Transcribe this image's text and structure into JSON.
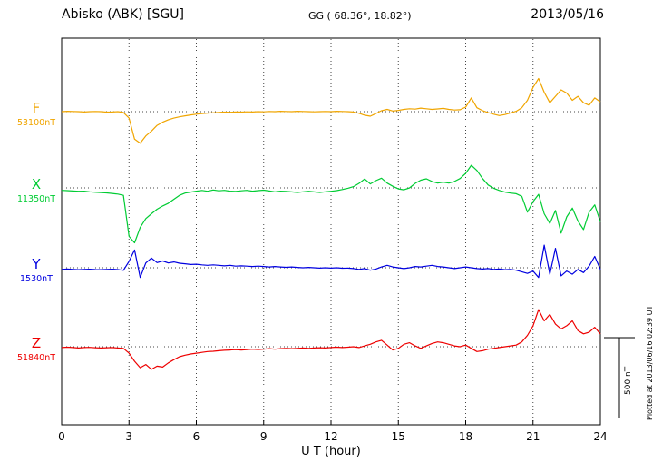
{
  "header": {
    "station": "Abisko (ABK)  [SGU]",
    "coords": "GG ( 68.36°,  18.82°)",
    "date": "2013/05/16"
  },
  "side": {
    "scale_label": "500 nT",
    "plotted_at": "Plotted at 2013/06/16 02:39 UT"
  },
  "chart_data": {
    "type": "line",
    "title": "Abisko (ABK) [SGU] magnetogram 2013/05/16",
    "xlabel": "U T (hour)",
    "ylabel": "",
    "xlim": [
      0,
      24
    ],
    "x_ticks": [
      0,
      3,
      6,
      9,
      12,
      15,
      18,
      21,
      24
    ],
    "sampling_hours": 0.25,
    "scale_bar_nT": 500,
    "values_are": "offset from channel baseline in nT",
    "grid": "dotted vertical lines every 3 h; dotted horizontal baseline per channel",
    "legend_position": "channel letter and baseline value at left of each trace",
    "series": [
      {
        "name": "F",
        "baseline_label": "53100nT",
        "baseline_nT": 53100,
        "color": "#f0a500",
        "values_nT": [
          0,
          2,
          1,
          0,
          -2,
          0,
          1,
          0,
          -3,
          -2,
          0,
          -5,
          -40,
          -170,
          -195,
          -150,
          -120,
          -85,
          -65,
          -50,
          -40,
          -32,
          -26,
          -20,
          -16,
          -12,
          -9,
          -7,
          -5,
          -3,
          -4,
          -2,
          -3,
          -1,
          -2,
          0,
          -1,
          1,
          0,
          2,
          1,
          0,
          2,
          1,
          0,
          -1,
          0,
          1,
          0,
          2,
          1,
          0,
          -2,
          -10,
          -22,
          -28,
          -12,
          6,
          14,
          4,
          8,
          14,
          18,
          16,
          22,
          18,
          14,
          17,
          20,
          14,
          10,
          12,
          28,
          85,
          24,
          6,
          -6,
          -16,
          -24,
          -18,
          -8,
          2,
          24,
          70,
          150,
          205,
          120,
          55,
          95,
          135,
          115,
          70,
          95,
          55,
          40,
          85,
          60
        ]
      },
      {
        "name": "X",
        "baseline_label": "11350nT",
        "baseline_nT": 11350,
        "color": "#00cc33",
        "values_nT": [
          -15,
          -17,
          -19,
          -21,
          -20,
          -24,
          -27,
          -29,
          -31,
          -34,
          -38,
          -46,
          -300,
          -340,
          -245,
          -190,
          -160,
          -132,
          -112,
          -95,
          -70,
          -46,
          -32,
          -26,
          -20,
          -16,
          -21,
          -13,
          -18,
          -15,
          -20,
          -22,
          -18,
          -15,
          -20,
          -17,
          -14,
          -19,
          -24,
          -20,
          -22,
          -25,
          -28,
          -24,
          -21,
          -25,
          -28,
          -24,
          -21,
          -17,
          -10,
          -2,
          8,
          28,
          55,
          25,
          45,
          60,
          30,
          10,
          -6,
          -12,
          0,
          28,
          48,
          56,
          40,
          30,
          36,
          30,
          40,
          58,
          90,
          140,
          108,
          58,
          18,
          -2,
          -16,
          -26,
          -32,
          -36,
          -52,
          -150,
          -85,
          -40,
          -160,
          -220,
          -140,
          -280,
          -180,
          -125,
          -205,
          -258,
          -150,
          -105,
          -210
        ]
      },
      {
        "name": "Y",
        "baseline_label": "1530nT",
        "baseline_nT": 1530,
        "color": "#0000e0",
        "values_nT": [
          -10,
          -8,
          -10,
          -12,
          -10,
          -9,
          -11,
          -12,
          -10,
          -9,
          -11,
          -16,
          40,
          110,
          -60,
          30,
          60,
          32,
          42,
          30,
          36,
          28,
          25,
          20,
          22,
          18,
          15,
          18,
          15,
          12,
          15,
          10,
          12,
          10,
          8,
          10,
          8,
          5,
          8,
          5,
          3,
          5,
          2,
          0,
          2,
          0,
          -2,
          0,
          -2,
          0,
          -3,
          -2,
          -5,
          -10,
          -5,
          -15,
          -8,
          5,
          15,
          5,
          0,
          -5,
          0,
          8,
          5,
          10,
          15,
          8,
          5,
          0,
          -5,
          0,
          5,
          0,
          -5,
          -8,
          -5,
          -10,
          -8,
          -12,
          -10,
          -15,
          -25,
          -35,
          -20,
          -60,
          140,
          -40,
          120,
          -50,
          -20,
          -40,
          -10,
          -30,
          10,
          70,
          -10
        ]
      },
      {
        "name": "Z",
        "baseline_label": "51840nT",
        "baseline_nT": 51840,
        "color": "#ee0000",
        "values_nT": [
          -5,
          -3,
          -5,
          -8,
          -5,
          -4,
          -6,
          -8,
          -6,
          -5,
          -8,
          -10,
          -40,
          -90,
          -130,
          -110,
          -140,
          -120,
          -126,
          -100,
          -80,
          -62,
          -52,
          -45,
          -40,
          -35,
          -30,
          -28,
          -25,
          -22,
          -20,
          -18,
          -20,
          -18,
          -15,
          -17,
          -15,
          -12,
          -15,
          -12,
          -10,
          -12,
          -10,
          -8,
          -10,
          -8,
          -6,
          -8,
          -5,
          -3,
          -5,
          -3,
          0,
          -5,
          5,
          15,
          30,
          40,
          10,
          -20,
          -10,
          15,
          25,
          5,
          -10,
          5,
          20,
          30,
          25,
          15,
          5,
          0,
          10,
          -10,
          -30,
          -25,
          -15,
          -10,
          -5,
          0,
          5,
          10,
          30,
          70,
          130,
          230,
          160,
          200,
          140,
          110,
          130,
          160,
          100,
          80,
          90,
          120,
          80
        ]
      }
    ]
  }
}
